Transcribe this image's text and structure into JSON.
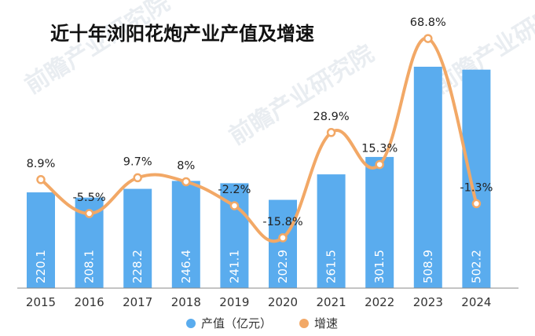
{
  "watermark": "前瞻产业研究院",
  "colors": {
    "bar": "#5aacee",
    "line": "#f2a866",
    "axis": "#888888"
  },
  "chart_data": {
    "type": "bar",
    "title": "近十年浏阳花炮产业产值及增速",
    "categories": [
      "2015",
      "2016",
      "2017",
      "2018",
      "2019",
      "2020",
      "2021",
      "2022",
      "2023",
      "2024"
    ],
    "series": [
      {
        "name": "产值（亿元）",
        "type": "bar",
        "values": [
          220.1,
          208.1,
          228.2,
          246.4,
          241.1,
          202.9,
          261.5,
          301.5,
          508.9,
          502.2
        ],
        "labels": [
          "220.1",
          "208.1",
          "228.2",
          "246.4",
          "241.1",
          "202.9",
          "261.5",
          "301.5",
          "508.9",
          "502.2"
        ]
      },
      {
        "name": "增速",
        "type": "line",
        "values": [
          8.9,
          -5.5,
          9.7,
          8,
          -2.2,
          -15.8,
          28.9,
          15.3,
          68.8,
          -1.3
        ],
        "labels": [
          "8.9%",
          "-5.5%",
          "9.7%",
          "8%",
          "-2.2%",
          "-15.8%",
          "28.9%",
          "15.3%",
          "68.8%",
          "-1.3%"
        ]
      }
    ],
    "legend": "bottom",
    "grid": false
  }
}
